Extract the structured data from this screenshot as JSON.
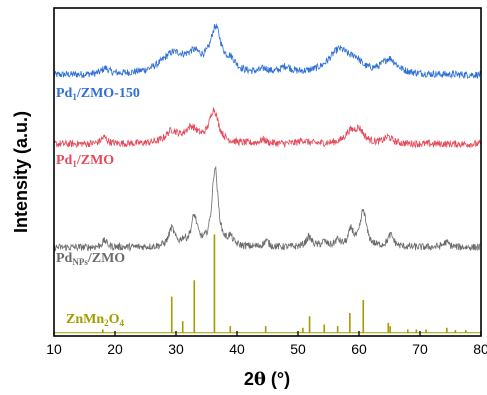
{
  "chart_data": {
    "type": "line",
    "xlabel_prefix": "2",
    "xlabel_theta": "θ",
    "xlabel_suffix": " (°)",
    "ylabel": "Intensity (a.u.)",
    "xlim": [
      10,
      80
    ],
    "xticks": [
      "10",
      "20",
      "30",
      "40",
      "50",
      "60",
      "70",
      "80"
    ],
    "yticks_shown": false,
    "grid": false,
    "legend": "none",
    "series": [
      {
        "name_main": "Pd",
        "name_sub": "1",
        "name_rest": "/ZMO-150",
        "color": "#2f6fd6",
        "baseline": 0.795,
        "peaks": [
          {
            "x": 18.4,
            "h": 0.018,
            "w": 0.7
          },
          {
            "x": 29.5,
            "h": 0.06,
            "w": 2.5
          },
          {
            "x": 33.0,
            "h": 0.045,
            "w": 1.5
          },
          {
            "x": 36.5,
            "h": 0.13,
            "w": 1.1
          },
          {
            "x": 39.0,
            "h": 0.03,
            "w": 1.0
          },
          {
            "x": 44.5,
            "h": 0.012,
            "w": 0.8
          },
          {
            "x": 48.0,
            "h": 0.02,
            "w": 1.0
          },
          {
            "x": 56.8,
            "h": 0.075,
            "w": 2.2
          },
          {
            "x": 59.5,
            "h": 0.025,
            "w": 1.0
          },
          {
            "x": 65.0,
            "h": 0.045,
            "w": 1.5
          }
        ]
      },
      {
        "name_main": "Pd",
        "name_sub": "1",
        "name_rest": "/ZMO",
        "color": "#e5495a",
        "baseline": 0.585,
        "peaks": [
          {
            "x": 18.2,
            "h": 0.02,
            "w": 0.6
          },
          {
            "x": 29.3,
            "h": 0.035,
            "w": 1.2
          },
          {
            "x": 32.5,
            "h": 0.045,
            "w": 1.3
          },
          {
            "x": 36.2,
            "h": 0.1,
            "w": 0.9
          },
          {
            "x": 44.3,
            "h": 0.012,
            "w": 0.6
          },
          {
            "x": 50.8,
            "h": 0.01,
            "w": 0.8
          },
          {
            "x": 58.5,
            "h": 0.03,
            "w": 1.0
          },
          {
            "x": 60.0,
            "h": 0.04,
            "w": 1.0
          },
          {
            "x": 64.8,
            "h": 0.02,
            "w": 0.8
          }
        ]
      },
      {
        "name_main": "Pd",
        "name_sub": "NPs",
        "name_rest": "/ZMO",
        "color": "#6b6b6b",
        "baseline": 0.27,
        "peaks": [
          {
            "x": 18.3,
            "h": 0.02,
            "w": 0.5
          },
          {
            "x": 29.3,
            "h": 0.055,
            "w": 0.6
          },
          {
            "x": 31.2,
            "h": 0.015,
            "w": 0.5
          },
          {
            "x": 33.0,
            "h": 0.09,
            "w": 0.6
          },
          {
            "x": 36.4,
            "h": 0.24,
            "w": 0.6
          },
          {
            "x": 38.9,
            "h": 0.025,
            "w": 0.5
          },
          {
            "x": 44.8,
            "h": 0.018,
            "w": 0.5
          },
          {
            "x": 51.8,
            "h": 0.03,
            "w": 0.6
          },
          {
            "x": 54.3,
            "h": 0.015,
            "w": 0.5
          },
          {
            "x": 56.5,
            "h": 0.02,
            "w": 0.5
          },
          {
            "x": 58.7,
            "h": 0.05,
            "w": 0.5
          },
          {
            "x": 60.7,
            "h": 0.11,
            "w": 0.6
          },
          {
            "x": 65.2,
            "h": 0.035,
            "w": 0.6
          },
          {
            "x": 74.3,
            "h": 0.015,
            "w": 0.6
          }
        ]
      },
      {
        "name_main": "ZnMn",
        "name_sub": "2",
        "name_rest": "O",
        "name_sub2": "4",
        "color": "#a39b00",
        "type": "stick",
        "baseline": 0.01,
        "sticks": [
          {
            "x": 18.0,
            "h": 0.01
          },
          {
            "x": 29.3,
            "h": 0.11
          },
          {
            "x": 31.1,
            "h": 0.035
          },
          {
            "x": 33.0,
            "h": 0.16
          },
          {
            "x": 36.3,
            "h": 0.3
          },
          {
            "x": 38.9,
            "h": 0.02
          },
          {
            "x": 44.7,
            "h": 0.02
          },
          {
            "x": 50.8,
            "h": 0.015
          },
          {
            "x": 51.9,
            "h": 0.05
          },
          {
            "x": 54.3,
            "h": 0.025
          },
          {
            "x": 56.5,
            "h": 0.02
          },
          {
            "x": 58.5,
            "h": 0.06
          },
          {
            "x": 60.7,
            "h": 0.1
          },
          {
            "x": 64.8,
            "h": 0.03
          },
          {
            "x": 65.1,
            "h": 0.02
          },
          {
            "x": 68.0,
            "h": 0.01
          },
          {
            "x": 69.4,
            "h": 0.01
          },
          {
            "x": 71.0,
            "h": 0.01
          },
          {
            "x": 74.4,
            "h": 0.015
          },
          {
            "x": 75.8,
            "h": 0.008
          },
          {
            "x": 77.5,
            "h": 0.008
          }
        ]
      }
    ]
  }
}
